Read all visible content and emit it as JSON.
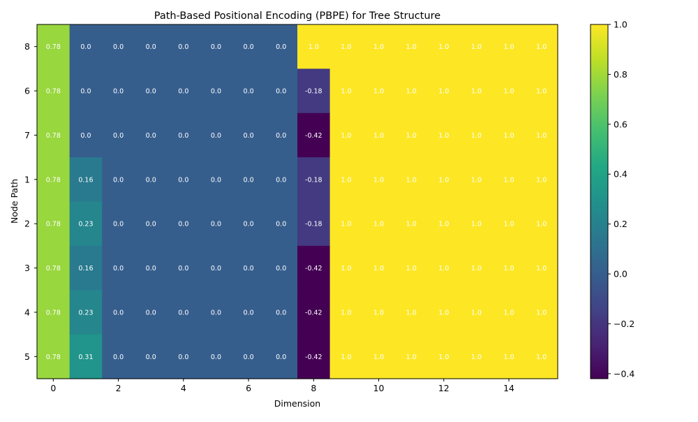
{
  "chart_data": {
    "type": "heatmap",
    "title": "Path-Based Positional Encoding (PBPE) for Tree Structure",
    "xlabel": "Dimension",
    "ylabel": "Node Path",
    "x_ticks": [
      0,
      2,
      4,
      6,
      8,
      10,
      12,
      14
    ],
    "columns": [
      0,
      1,
      2,
      3,
      4,
      5,
      6,
      7,
      8,
      9,
      10,
      11,
      12,
      13,
      14,
      15
    ],
    "rows": [
      "8",
      "6",
      "7",
      "1",
      "2",
      "3",
      "4",
      "5"
    ],
    "values": [
      [
        0.78,
        0.0,
        0.0,
        0.0,
        0.0,
        0.0,
        0.0,
        0.0,
        1.0,
        1.0,
        1.0,
        1.0,
        1.0,
        1.0,
        1.0,
        1.0
      ],
      [
        0.78,
        0.0,
        0.0,
        0.0,
        0.0,
        0.0,
        0.0,
        0.0,
        -0.18,
        1.0,
        1.0,
        1.0,
        1.0,
        1.0,
        1.0,
        1.0
      ],
      [
        0.78,
        0.0,
        0.0,
        0.0,
        0.0,
        0.0,
        0.0,
        0.0,
        -0.42,
        1.0,
        1.0,
        1.0,
        1.0,
        1.0,
        1.0,
        1.0
      ],
      [
        0.78,
        0.16,
        0.0,
        0.0,
        0.0,
        0.0,
        0.0,
        0.0,
        -0.18,
        1.0,
        1.0,
        1.0,
        1.0,
        1.0,
        1.0,
        1.0
      ],
      [
        0.78,
        0.23,
        0.0,
        0.0,
        0.0,
        0.0,
        0.0,
        0.0,
        -0.18,
        1.0,
        1.0,
        1.0,
        1.0,
        1.0,
        1.0,
        1.0
      ],
      [
        0.78,
        0.16,
        0.0,
        0.0,
        0.0,
        0.0,
        0.0,
        0.0,
        -0.42,
        1.0,
        1.0,
        1.0,
        1.0,
        1.0,
        1.0,
        1.0
      ],
      [
        0.78,
        0.23,
        0.0,
        0.0,
        0.0,
        0.0,
        0.0,
        0.0,
        -0.42,
        1.0,
        1.0,
        1.0,
        1.0,
        1.0,
        1.0,
        1.0
      ],
      [
        0.78,
        0.31,
        0.0,
        0.0,
        0.0,
        0.0,
        0.0,
        0.0,
        -0.42,
        1.0,
        1.0,
        1.0,
        1.0,
        1.0,
        1.0,
        1.0
      ]
    ],
    "colormap": "viridis",
    "vmin": -0.42,
    "vmax": 1.0,
    "colorbar_ticks": [
      1.0,
      0.8,
      0.6,
      0.4,
      0.2,
      0.0,
      -0.2,
      -0.4
    ],
    "colorbar_tick_labels": [
      "1.0",
      "0.8",
      "0.6",
      "0.4",
      "0.2",
      "0.0",
      "−0.2",
      "−0.4"
    ],
    "grid": false,
    "legend": "colorbar-right"
  }
}
